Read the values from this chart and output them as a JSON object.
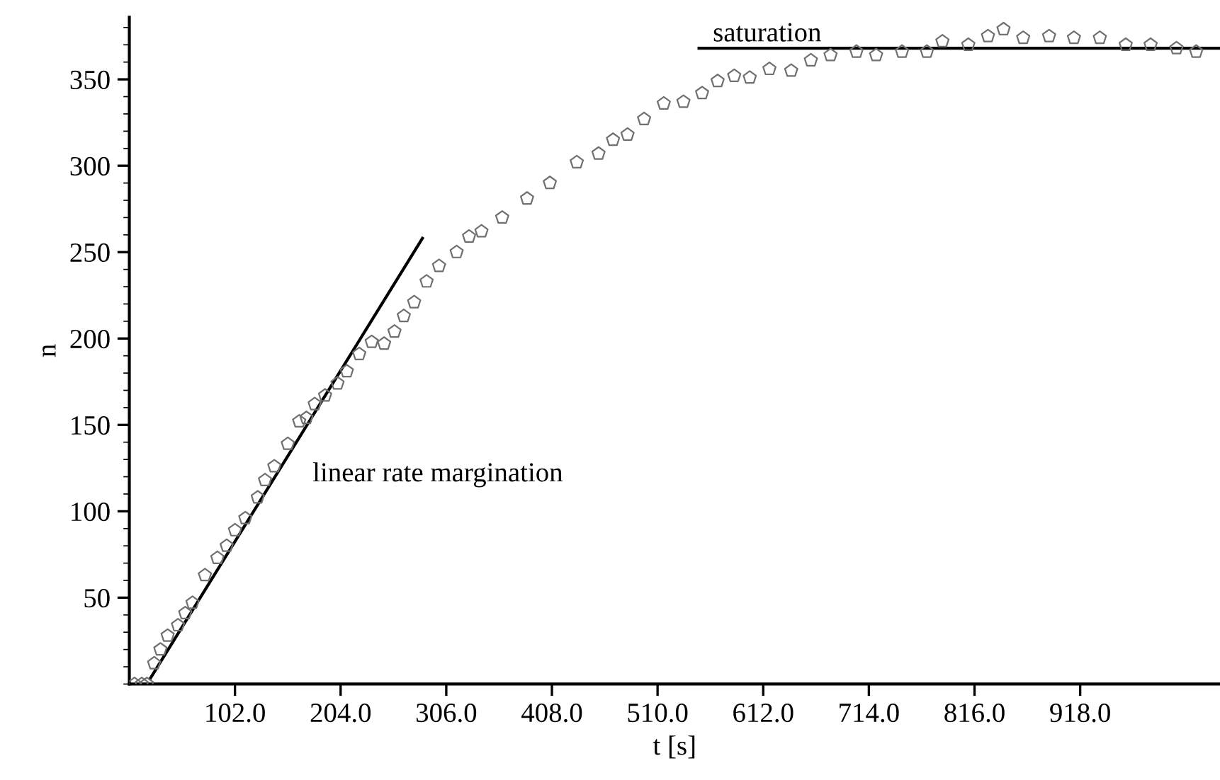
{
  "chart_data": {
    "type": "scatter",
    "xlabel": "t [s]",
    "ylabel": "n",
    "xlim": [
      0,
      1053
    ],
    "ylim": [
      0,
      386
    ],
    "xticks": [
      {
        "value": 102,
        "label": "102.0"
      },
      {
        "value": 204,
        "label": "204.0"
      },
      {
        "value": 306,
        "label": "306.0"
      },
      {
        "value": 408,
        "label": "408.0"
      },
      {
        "value": 510,
        "label": "510.0"
      },
      {
        "value": 612,
        "label": "612.0"
      },
      {
        "value": 714,
        "label": "714.0"
      },
      {
        "value": 816,
        "label": "816.0"
      },
      {
        "value": 918,
        "label": "918.0"
      }
    ],
    "yticks": [
      50,
      100,
      150,
      200,
      250,
      300,
      350
    ],
    "grid": false,
    "legend": false,
    "series": [
      {
        "color": "#707070",
        "x": [
          5,
          12,
          17,
          24,
          30,
          37,
          47,
          54,
          61,
          73,
          85,
          94,
          102,
          112,
          124,
          131,
          140,
          153,
          164,
          171,
          179,
          189,
          201,
          210,
          222,
          234,
          246,
          256,
          265,
          275,
          287,
          299,
          316,
          328,
          340,
          360,
          384,
          406,
          432,
          453,
          467,
          481,
          497,
          516,
          535,
          553,
          568,
          584,
          599,
          618,
          639,
          658,
          677,
          702,
          721,
          746,
          770,
          785,
          810,
          829,
          844,
          863,
          888,
          912,
          937,
          962,
          986,
          1011,
          1030
        ],
        "values": [
          0,
          0,
          0,
          12,
          20,
          28,
          34,
          41,
          47,
          63,
          73,
          80,
          89,
          96,
          108,
          118,
          126,
          139,
          152,
          154,
          162,
          167,
          174,
          181,
          191,
          198,
          197,
          204,
          213,
          221,
          233,
          242,
          250,
          259,
          262,
          270,
          281,
          290,
          302,
          307,
          315,
          318,
          327,
          336,
          337,
          342,
          349,
          352,
          351,
          356,
          355,
          361,
          364,
          366,
          364,
          366,
          366,
          372,
          370,
          375,
          379,
          374,
          375,
          374,
          374,
          370,
          370,
          368,
          366
        ]
      },
      {
        "type": "line",
        "color": "#000000",
        "x": [
          20,
          283
        ],
        "values": [
          3,
          258
        ]
      },
      {
        "type": "line",
        "color": "#000000",
        "x": [
          550,
          1053
        ],
        "values": [
          368,
          368
        ]
      }
    ],
    "annotations": [
      "linear rate margination",
      "saturation"
    ]
  }
}
